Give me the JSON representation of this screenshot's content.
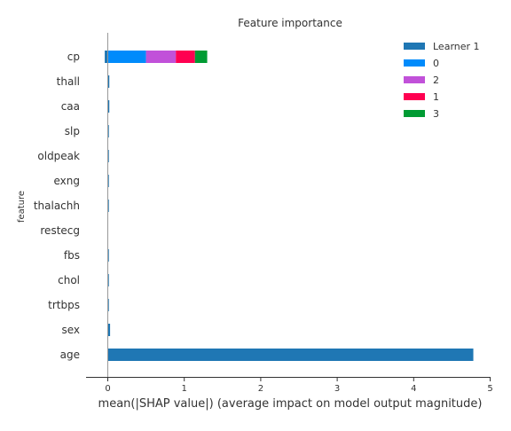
{
  "chart_data": {
    "type": "bar",
    "stacked": true,
    "orientation": "horizontal",
    "title": "Feature importance",
    "xlabel": "mean(|SHAP value|) (average impact on model output magnitude)",
    "ylabel": "feature",
    "xlim": [
      -0.28,
      5.02
    ],
    "xticks": [
      "0",
      "1",
      "2",
      "3",
      "4",
      "5"
    ],
    "categories": [
      "cp",
      "thall",
      "caa",
      "slp",
      "oldpeak",
      "exng",
      "thalachh",
      "restecg",
      "fbs",
      "chol",
      "trtbps",
      "sex",
      "age"
    ],
    "series": [
      {
        "name": "Learner 1",
        "color": "#1f77b4",
        "values": [
          0.04,
          0.02,
          0.02,
          0.01,
          0.01,
          0.01,
          0.005,
          0.0,
          0.01,
          0.01,
          0.01,
          0.03,
          4.78
        ]
      },
      {
        "name": "0",
        "color": "#008bfb",
        "values": [
          0.5,
          0,
          0,
          0,
          0,
          0,
          0,
          0,
          0,
          0,
          0,
          0,
          0
        ]
      },
      {
        "name": "2",
        "color": "#c151d9",
        "values": [
          0.39,
          0,
          0,
          0,
          0,
          0,
          0,
          0,
          0,
          0,
          0,
          0,
          0
        ]
      },
      {
        "name": "1",
        "color": "#ff0051",
        "values": [
          0.25,
          0,
          0,
          0,
          0,
          0,
          0,
          0,
          0,
          0,
          0,
          0,
          0
        ]
      },
      {
        "name": "3",
        "color": "#009b33",
        "values": [
          0.16,
          0,
          0,
          0,
          0,
          0,
          0,
          0,
          0,
          0,
          0,
          0,
          0
        ]
      }
    ],
    "notes": {
      "learner1_on_cp_extends_left": true
    },
    "legend_position": "top-right",
    "grid": false
  }
}
